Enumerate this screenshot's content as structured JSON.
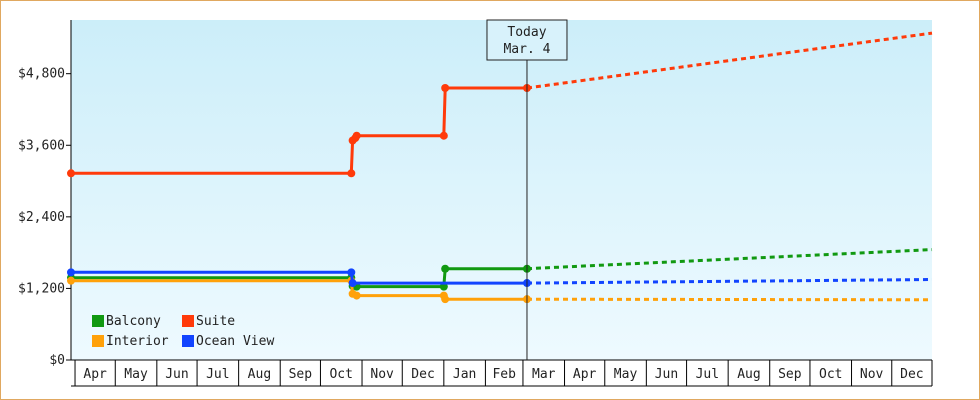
{
  "today_marker": {
    "line1": "Today",
    "line2": "Mar. 4",
    "x": "2025-03-04"
  },
  "chart_data": {
    "type": "line",
    "x_type": "date",
    "xlim": [
      "2024-03-29",
      "2025-12-31"
    ],
    "ylim": [
      0,
      5700
    ],
    "y_ticks": [
      0,
      1200,
      2400,
      3600,
      4800
    ],
    "y_tick_labels": [
      "$0",
      "$1,200",
      "$2,400",
      "$3,600",
      "$4,800"
    ],
    "x_tick_labels": [
      {
        "label": "Apr",
        "start": "2024-04-01",
        "end": "2024-05-01"
      },
      {
        "label": "May",
        "start": "2024-05-01",
        "end": "2024-06-01"
      },
      {
        "label": "Jun",
        "start": "2024-06-01",
        "end": "2024-07-01"
      },
      {
        "label": "Jul",
        "start": "2024-07-01",
        "end": "2024-08-01"
      },
      {
        "label": "Aug",
        "start": "2024-08-01",
        "end": "2024-09-01"
      },
      {
        "label": "Sep",
        "start": "2024-09-01",
        "end": "2024-10-01"
      },
      {
        "label": "Oct",
        "start": "2024-10-01",
        "end": "2024-11-01"
      },
      {
        "label": "Nov",
        "start": "2024-11-01",
        "end": "2024-12-01"
      },
      {
        "label": "Dec",
        "start": "2024-12-01",
        "end": "2025-01-01"
      },
      {
        "label": "Jan",
        "start": "2025-01-01",
        "end": "2025-02-01"
      },
      {
        "label": "Feb",
        "start": "2025-02-01",
        "end": "2025-03-01"
      },
      {
        "label": "Mar",
        "start": "2025-03-01",
        "end": "2025-04-01"
      },
      {
        "label": "Apr",
        "start": "2025-04-01",
        "end": "2025-05-01"
      },
      {
        "label": "May",
        "start": "2025-05-01",
        "end": "2025-06-01"
      },
      {
        "label": "Jun",
        "start": "2025-06-01",
        "end": "2025-07-01"
      },
      {
        "label": "Jul",
        "start": "2025-07-01",
        "end": "2025-08-01"
      },
      {
        "label": "Aug",
        "start": "2025-08-01",
        "end": "2025-09-01"
      },
      {
        "label": "Sep",
        "start": "2025-09-01",
        "end": "2025-10-01"
      },
      {
        "label": "Oct",
        "start": "2025-10-01",
        "end": "2025-11-01"
      },
      {
        "label": "Nov",
        "start": "2025-11-01",
        "end": "2025-12-01"
      },
      {
        "label": "Dec",
        "start": "2025-12-01",
        "end": "2026-01-01"
      }
    ],
    "legend_position": "bottom-left",
    "grid": false,
    "colors": {
      "background_top": "#cceef9",
      "background_bottom": "#eefaff",
      "frame": "#e0a860"
    },
    "series": [
      {
        "name": "Balcony",
        "color": "#119911",
        "points": [
          [
            "2024-03-29",
            1380
          ],
          [
            "2024-10-24",
            1380
          ],
          [
            "2024-10-25",
            1240
          ],
          [
            "2024-10-28",
            1230
          ],
          [
            "2025-01-01",
            1230
          ],
          [
            "2025-01-02",
            1530
          ],
          [
            "2025-03-04",
            1530
          ]
        ],
        "forecast": [
          [
            "2025-03-04",
            1530
          ],
          [
            "2025-12-31",
            1850
          ]
        ]
      },
      {
        "name": "Suite",
        "color": "#ff3a0a",
        "points": [
          [
            "2024-03-29",
            3130
          ],
          [
            "2024-10-24",
            3130
          ],
          [
            "2024-10-25",
            3680
          ],
          [
            "2024-10-27",
            3720
          ],
          [
            "2024-10-28",
            3760
          ],
          [
            "2025-01-01",
            3760
          ],
          [
            "2025-01-02",
            4560
          ],
          [
            "2025-03-04",
            4560
          ]
        ],
        "forecast": [
          [
            "2025-03-04",
            4560
          ],
          [
            "2025-12-31",
            5480
          ]
        ]
      },
      {
        "name": "Interior",
        "color": "#ffa10a",
        "points": [
          [
            "2024-03-29",
            1330
          ],
          [
            "2024-10-24",
            1330
          ],
          [
            "2024-10-25",
            1110
          ],
          [
            "2024-10-28",
            1080
          ],
          [
            "2025-01-01",
            1080
          ],
          [
            "2025-01-02",
            1020
          ],
          [
            "2025-03-04",
            1020
          ]
        ],
        "forecast": [
          [
            "2025-03-04",
            1020
          ],
          [
            "2025-12-31",
            1010
          ]
        ]
      },
      {
        "name": "Ocean View",
        "color": "#1144ff",
        "points": [
          [
            "2024-03-29",
            1470
          ],
          [
            "2024-10-24",
            1470
          ],
          [
            "2024-10-25",
            1290
          ],
          [
            "2025-03-04",
            1290
          ]
        ],
        "forecast": [
          [
            "2025-03-04",
            1290
          ],
          [
            "2025-12-31",
            1350
          ]
        ]
      }
    ]
  }
}
